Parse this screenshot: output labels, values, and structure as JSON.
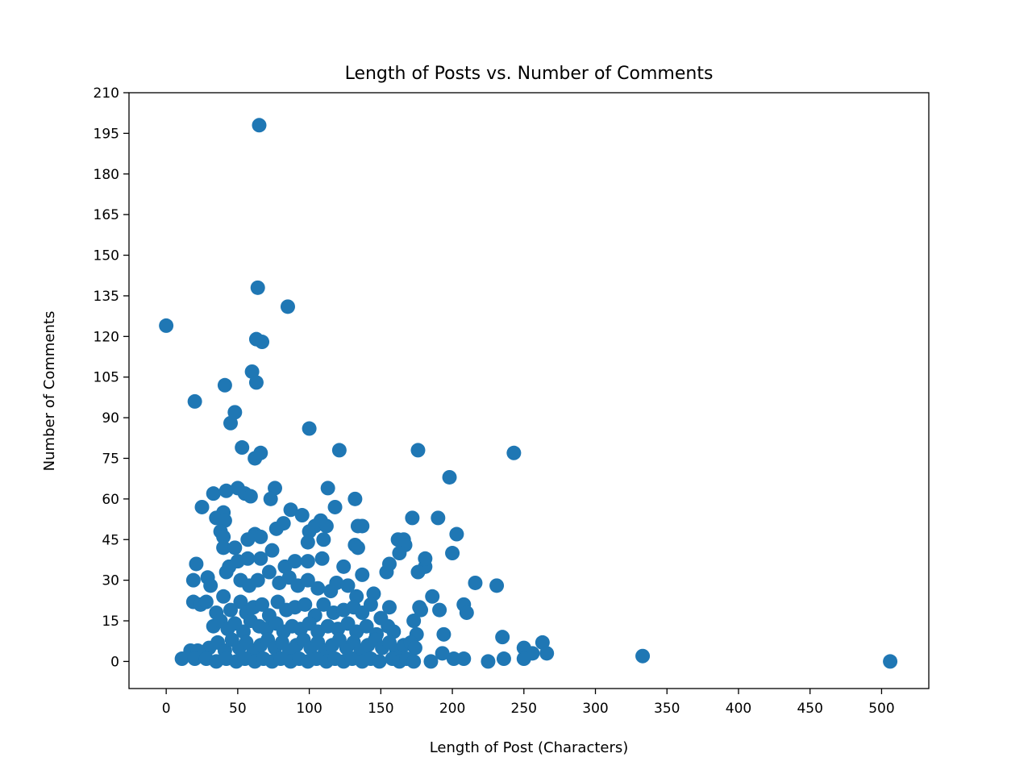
{
  "chart_data": {
    "type": "scatter",
    "title": "Length of Posts vs. Number of Comments",
    "xlabel": "Length of Post (Characters)",
    "ylabel": "Number of Comments",
    "xlim": [
      -26,
      533
    ],
    "ylim": [
      -10,
      210
    ],
    "xticks": [
      0,
      50,
      100,
      150,
      200,
      250,
      300,
      350,
      400,
      450,
      500
    ],
    "yticks": [
      0,
      15,
      30,
      45,
      60,
      75,
      90,
      105,
      120,
      135,
      150,
      165,
      180,
      195,
      210
    ],
    "grid": false,
    "marker_color": "#1f77b4",
    "points": [
      [
        0,
        124
      ],
      [
        20,
        96
      ],
      [
        41,
        102
      ],
      [
        45,
        88
      ],
      [
        48,
        92
      ],
      [
        53,
        79
      ],
      [
        60,
        107
      ],
      [
        62,
        75
      ],
      [
        63,
        103
      ],
      [
        63,
        119
      ],
      [
        64,
        138
      ],
      [
        65,
        198
      ],
      [
        66,
        77
      ],
      [
        67,
        118
      ],
      [
        85,
        131
      ],
      [
        100,
        86
      ],
      [
        121,
        78
      ],
      [
        176,
        78
      ],
      [
        198,
        68
      ],
      [
        243,
        77
      ],
      [
        33,
        62
      ],
      [
        42,
        63
      ],
      [
        50,
        64
      ],
      [
        55,
        62
      ],
      [
        59,
        61
      ],
      [
        76,
        64
      ],
      [
        73,
        60
      ],
      [
        113,
        64
      ],
      [
        132,
        60
      ],
      [
        25,
        57
      ],
      [
        87,
        56
      ],
      [
        40,
        55
      ],
      [
        95,
        54
      ],
      [
        35,
        53
      ],
      [
        41,
        52
      ],
      [
        108,
        52
      ],
      [
        172,
        53
      ],
      [
        190,
        53
      ],
      [
        38,
        48
      ],
      [
        40,
        46
      ],
      [
        77,
        49
      ],
      [
        82,
        51
      ],
      [
        100,
        48
      ],
      [
        104,
        50
      ],
      [
        112,
        50
      ],
      [
        134,
        50
      ],
      [
        137,
        50
      ],
      [
        118,
        57
      ],
      [
        62,
        47
      ],
      [
        66,
        46
      ],
      [
        57,
        45
      ],
      [
        110,
        45
      ],
      [
        40,
        42
      ],
      [
        48,
        42
      ],
      [
        74,
        41
      ],
      [
        99,
        44
      ],
      [
        132,
        43
      ],
      [
        134,
        42
      ],
      [
        162,
        45
      ],
      [
        166,
        45
      ],
      [
        167,
        43
      ],
      [
        203,
        47
      ],
      [
        21,
        36
      ],
      [
        44,
        35
      ],
      [
        50,
        37
      ],
      [
        57,
        38
      ],
      [
        66,
        38
      ],
      [
        83,
        35
      ],
      [
        90,
        37
      ],
      [
        99,
        37
      ],
      [
        109,
        38
      ],
      [
        124,
        35
      ],
      [
        137,
        32
      ],
      [
        154,
        33
      ],
      [
        156,
        36
      ],
      [
        163,
        40
      ],
      [
        181,
        35
      ],
      [
        181,
        38
      ],
      [
        200,
        40
      ],
      [
        19,
        30
      ],
      [
        29,
        31
      ],
      [
        31,
        28
      ],
      [
        42,
        33
      ],
      [
        52,
        30
      ],
      [
        58,
        28
      ],
      [
        64,
        30
      ],
      [
        72,
        33
      ],
      [
        79,
        29
      ],
      [
        86,
        31
      ],
      [
        92,
        28
      ],
      [
        99,
        30
      ],
      [
        106,
        27
      ],
      [
        115,
        26
      ],
      [
        119,
        29
      ],
      [
        127,
        28
      ],
      [
        133,
        24
      ],
      [
        145,
        25
      ],
      [
        156,
        20
      ],
      [
        176,
        33
      ],
      [
        186,
        24
      ],
      [
        216,
        29
      ],
      [
        231,
        28
      ],
      [
        208,
        21
      ],
      [
        210,
        18
      ],
      [
        19,
        22
      ],
      [
        24,
        21
      ],
      [
        28,
        22
      ],
      [
        35,
        18
      ],
      [
        40,
        24
      ],
      [
        45,
        19
      ],
      [
        52,
        22
      ],
      [
        56,
        18
      ],
      [
        61,
        20
      ],
      [
        67,
        21
      ],
      [
        72,
        17
      ],
      [
        78,
        22
      ],
      [
        84,
        19
      ],
      [
        90,
        20
      ],
      [
        97,
        21
      ],
      [
        104,
        17
      ],
      [
        110,
        21
      ],
      [
        117,
        18
      ],
      [
        124,
        19
      ],
      [
        131,
        20
      ],
      [
        137,
        18
      ],
      [
        143,
        21
      ],
      [
        150,
        16
      ],
      [
        177,
        20
      ],
      [
        178,
        19
      ],
      [
        191,
        19
      ],
      [
        33,
        13
      ],
      [
        38,
        15
      ],
      [
        43,
        12
      ],
      [
        48,
        14
      ],
      [
        54,
        11
      ],
      [
        59,
        15
      ],
      [
        65,
        13
      ],
      [
        70,
        12
      ],
      [
        77,
        14
      ],
      [
        82,
        11
      ],
      [
        88,
        13
      ],
      [
        94,
        12
      ],
      [
        100,
        14
      ],
      [
        106,
        11
      ],
      [
        113,
        13
      ],
      [
        120,
        12
      ],
      [
        127,
        14
      ],
      [
        133,
        11
      ],
      [
        140,
        13
      ],
      [
        147,
        10
      ],
      [
        155,
        13
      ],
      [
        159,
        11
      ],
      [
        173,
        15
      ],
      [
        175,
        10
      ],
      [
        194,
        10
      ],
      [
        235,
        9
      ],
      [
        30,
        5
      ],
      [
        36,
        7
      ],
      [
        41,
        4
      ],
      [
        46,
        8
      ],
      [
        51,
        5
      ],
      [
        56,
        7
      ],
      [
        61,
        4
      ],
      [
        66,
        6
      ],
      [
        71,
        8
      ],
      [
        76,
        5
      ],
      [
        81,
        7
      ],
      [
        86,
        4
      ],
      [
        91,
        6
      ],
      [
        96,
        8
      ],
      [
        101,
        5
      ],
      [
        106,
        7
      ],
      [
        111,
        4
      ],
      [
        116,
        6
      ],
      [
        121,
        8
      ],
      [
        126,
        5
      ],
      [
        131,
        7
      ],
      [
        136,
        4
      ],
      [
        141,
        6
      ],
      [
        146,
        8
      ],
      [
        151,
        5
      ],
      [
        156,
        7
      ],
      [
        161,
        4
      ],
      [
        166,
        6
      ],
      [
        171,
        7
      ],
      [
        174,
        5
      ],
      [
        193,
        3
      ],
      [
        250,
        5
      ],
      [
        263,
        7
      ],
      [
        256,
        3
      ],
      [
        266,
        3
      ],
      [
        17,
        4
      ],
      [
        22,
        4
      ],
      [
        11,
        1
      ],
      [
        20,
        1
      ],
      [
        28,
        1
      ],
      [
        35,
        0
      ],
      [
        42,
        1
      ],
      [
        49,
        0
      ],
      [
        55,
        1
      ],
      [
        62,
        0
      ],
      [
        68,
        1
      ],
      [
        74,
        0
      ],
      [
        80,
        1
      ],
      [
        87,
        0
      ],
      [
        93,
        1
      ],
      [
        99,
        0
      ],
      [
        105,
        1
      ],
      [
        112,
        0
      ],
      [
        118,
        1
      ],
      [
        124,
        0
      ],
      [
        130,
        1
      ],
      [
        137,
        0
      ],
      [
        143,
        1
      ],
      [
        149,
        0
      ],
      [
        158,
        1
      ],
      [
        163,
        0
      ],
      [
        168,
        1
      ],
      [
        173,
        0
      ],
      [
        185,
        0
      ],
      [
        201,
        1
      ],
      [
        208,
        1
      ],
      [
        225,
        0
      ],
      [
        236,
        1
      ],
      [
        250,
        1
      ],
      [
        333,
        2
      ],
      [
        506,
        0
      ]
    ]
  }
}
